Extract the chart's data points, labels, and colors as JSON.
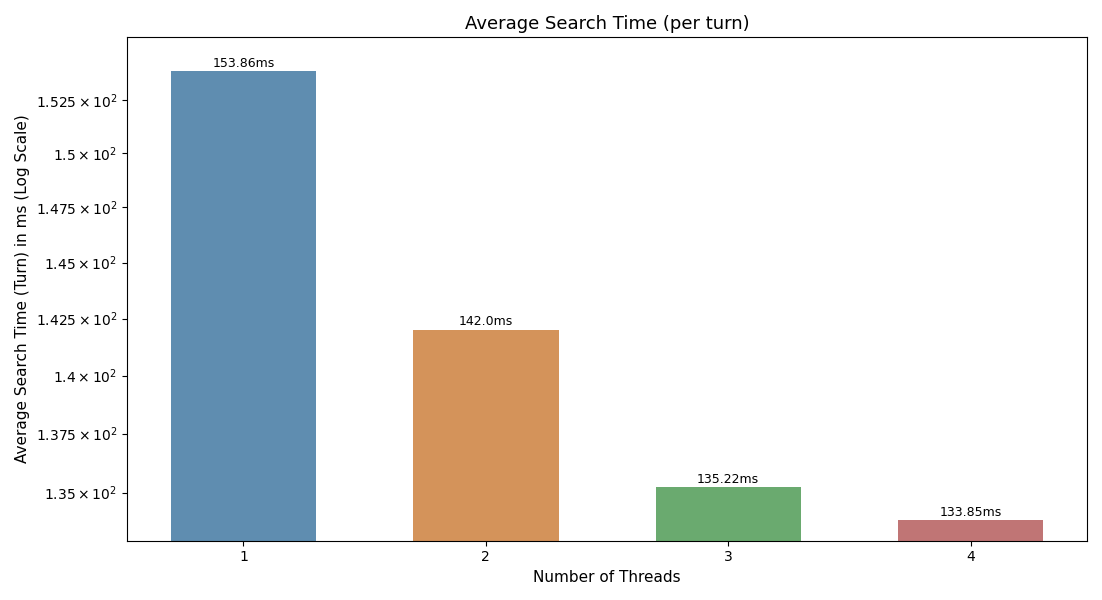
{
  "categories": [
    1,
    2,
    3,
    4
  ],
  "values": [
    153.86,
    142.0,
    135.22,
    133.85
  ],
  "labels": [
    "153.86ms",
    "142.0ms",
    "135.22ms",
    "133.85ms"
  ],
  "bar_colors": [
    "#5f8db0",
    "#d4935a",
    "#6aaa6f",
    "#c07575"
  ],
  "title": "Average Search Time (per turn)",
  "xlabel": "Number of Threads",
  "ylabel": "Average Search Time (Turn) in ms (Log Scale)",
  "yticks": [
    135.0,
    137.5,
    140.0,
    142.5,
    145.0,
    147.5,
    150.0,
    152.5
  ],
  "ylim_min": 133.0,
  "ylim_max": 155.5,
  "background_color": "#ffffff"
}
